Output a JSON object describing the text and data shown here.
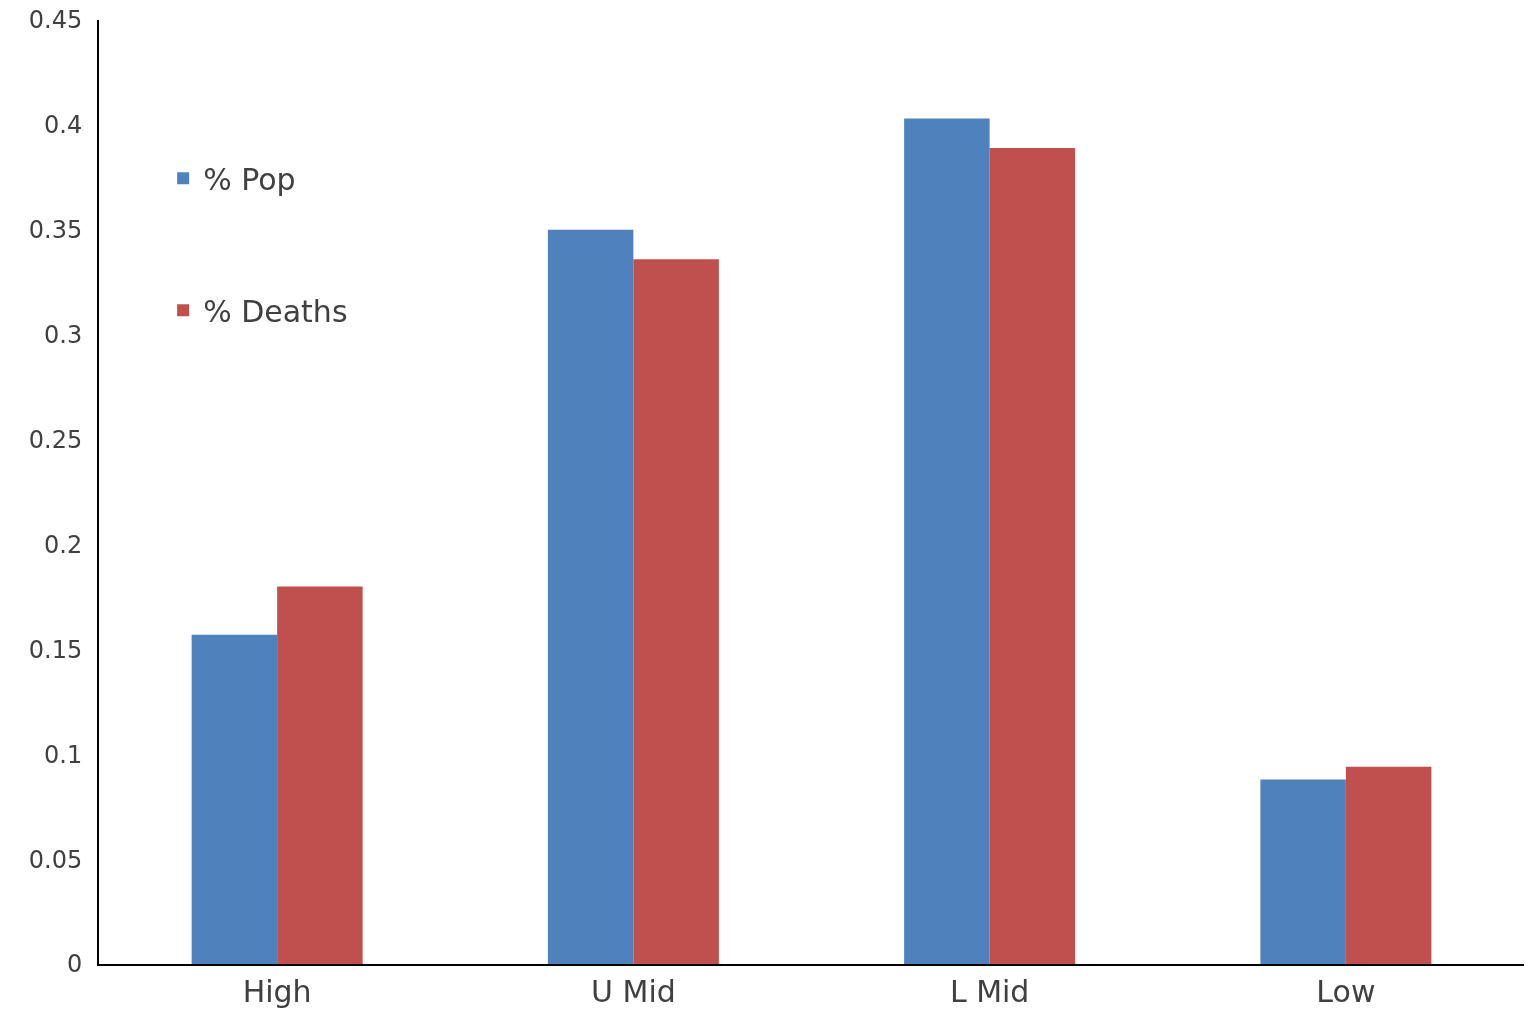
{
  "chart_data": {
    "type": "bar",
    "categories": [
      "High",
      "U Mid",
      "L Mid",
      "Low"
    ],
    "series": [
      {
        "name": "% Pop",
        "color": "#4f81bd",
        "values": [
          0.157,
          0.35,
          0.403,
          0.088
        ]
      },
      {
        "name": "% Deaths",
        "color": "#c0504d",
        "values": [
          0.18,
          0.336,
          0.389,
          0.094
        ]
      }
    ],
    "ylim": [
      0,
      0.45
    ],
    "yticks": [
      0,
      0.05,
      0.1,
      0.15,
      0.2,
      0.25,
      0.3,
      0.35,
      0.4,
      0.45
    ],
    "legend": "top left"
  }
}
